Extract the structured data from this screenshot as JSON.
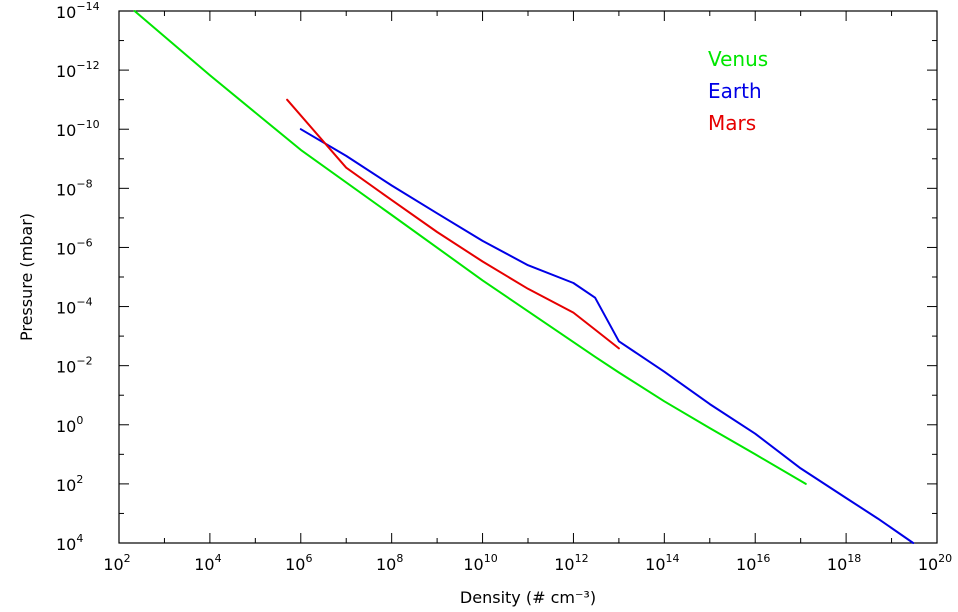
{
  "chart_data": {
    "type": "line",
    "xlabel": "Density (# cm⁻³)",
    "ylabel": "Pressure (mbar)",
    "x_scale": "log",
    "y_scale": "log",
    "xlim": [
      100,
      1e+20
    ],
    "ylim": [
      1e-14,
      10000
    ],
    "y_axis_inverted": true,
    "x_ticks": [
      {
        "base": "10",
        "exp": "2",
        "value": 100.0
      },
      {
        "base": "10",
        "exp": "4",
        "value": 10000.0
      },
      {
        "base": "10",
        "exp": "6",
        "value": 1000000.0
      },
      {
        "base": "10",
        "exp": "8",
        "value": 100000000.0
      },
      {
        "base": "10",
        "exp": "10",
        "value": 10000000000.0
      },
      {
        "base": "10",
        "exp": "12",
        "value": 1000000000000.0
      },
      {
        "base": "10",
        "exp": "14",
        "value": 100000000000000.0
      },
      {
        "base": "10",
        "exp": "16",
        "value": 1e+16
      },
      {
        "base": "10",
        "exp": "18",
        "value": 1e+18
      },
      {
        "base": "10",
        "exp": "20",
        "value": 1e+20
      }
    ],
    "y_ticks": [
      {
        "base": "10",
        "exp": "−14",
        "value": 1e-14
      },
      {
        "base": "10",
        "exp": "−12",
        "value": 1e-12
      },
      {
        "base": "10",
        "exp": "−10",
        "value": 1e-10
      },
      {
        "base": "10",
        "exp": "−8",
        "value": 1e-08
      },
      {
        "base": "10",
        "exp": "−6",
        "value": 1e-06
      },
      {
        "base": "10",
        "exp": "−4",
        "value": 0.0001
      },
      {
        "base": "10",
        "exp": "−2",
        "value": 0.01
      },
      {
        "base": "10",
        "exp": "0",
        "value": 1
      },
      {
        "base": "10",
        "exp": "2",
        "value": 100.0
      },
      {
        "base": "10",
        "exp": "4",
        "value": 10000.0
      }
    ],
    "legend_position": "top-right",
    "series": [
      {
        "name": "Venus",
        "color": "#00e600",
        "points": [
          [
            220,
            1e-14
          ],
          [
            10000.0,
            1.5e-12
          ],
          [
            1000000.0,
            5e-10
          ],
          [
            100000000.0,
            8e-08
          ],
          [
            10000000000.0,
            1.3e-05
          ],
          [
            1000000000000.0,
            0.0016
          ],
          [
            3000000000000.0,
            0.005
          ],
          [
            10000000000000.0,
            0.017
          ],
          [
            100000000000000.0,
            0.16
          ],
          [
            1000000000000000.0,
            1.3
          ],
          [
            1e+16,
            10
          ],
          [
            1.3e+17,
            100
          ]
        ]
      },
      {
        "name": "Earth",
        "color": "#0000e6",
        "points": [
          [
            1000000.0,
            1e-10
          ],
          [
            10000000.0,
            8e-10
          ],
          [
            100000000.0,
            8e-09
          ],
          [
            1000000000.0,
            7e-08
          ],
          [
            10000000000.0,
            6e-07
          ],
          [
            100000000000.0,
            4e-06
          ],
          [
            1000000000000.0,
            1.6e-05
          ],
          [
            3000000000000.0,
            5e-05
          ],
          [
            10000000000000.0,
            0.0015
          ],
          [
            100000000000000.0,
            0.016
          ],
          [
            1000000000000000.0,
            0.2
          ],
          [
            1e+16,
            2
          ],
          [
            1e+17,
            30
          ],
          [
            1e+18,
            300
          ],
          [
            5e+18,
            1500
          ],
          [
            3e+19,
            10000
          ]
        ]
      },
      {
        "name": "Mars",
        "color": "#e60000",
        "points": [
          [
            500000.0,
            1e-11
          ],
          [
            10000000.0,
            2e-09
          ],
          [
            100000000.0,
            2.5e-08
          ],
          [
            1000000000.0,
            3e-07
          ],
          [
            10000000000.0,
            3e-06
          ],
          [
            100000000000.0,
            2.5e-05
          ],
          [
            1000000000000.0,
            0.00016
          ],
          [
            3000000000000.0,
            0.0006
          ],
          [
            10000000000000.0,
            0.0026
          ]
        ]
      }
    ]
  }
}
